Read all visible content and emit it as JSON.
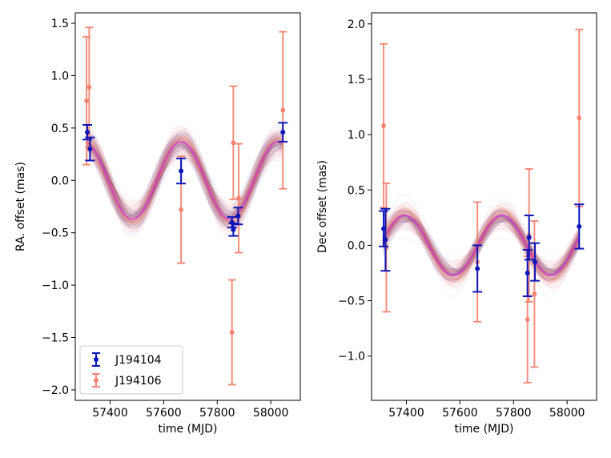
{
  "colors": {
    "series_a": "#0a16b8",
    "series_b": "#f47a66",
    "model_line": "#e233d6",
    "posterior_a": "#3f2aa8",
    "posterior_b": "#f47a66"
  },
  "legend": {
    "position": "lower-left"
  },
  "chart_data": [
    {
      "type": "scatter",
      "xlabel": "time (MJD)",
      "ylabel": "RA. offset (mas)",
      "xlim": [
        57270,
        58110
      ],
      "ylim": [
        -2.1,
        1.6
      ],
      "xticks": [
        57400,
        57600,
        57800,
        58000
      ],
      "xtick_labels": [
        "57400",
        "57600",
        "57800",
        "58000"
      ],
      "yticks": [
        1.5,
        1.0,
        0.5,
        0.0,
        -0.5,
        -1.0,
        -1.5,
        -2.0
      ],
      "ytick_labels": [
        "1.5",
        "1.0",
        "0.5",
        "0.0",
        "−0.5",
        "−1.0",
        "−1.5",
        "−2.0"
      ],
      "model": {
        "amplitude": 0.37,
        "period_days": 363,
        "peak_mjd": 57665
      },
      "series": [
        {
          "name": "J194104",
          "color": "#0a16b8",
          "points": [
            {
              "x": 57315,
              "y": 0.46,
              "err": 0.07
            },
            {
              "x": 57325,
              "y": 0.3,
              "err": 0.11
            },
            {
              "x": 57665,
              "y": 0.09,
              "err": 0.12
            },
            {
              "x": 57855,
              "y": -0.4,
              "err": 0.05
            },
            {
              "x": 57860,
              "y": -0.47,
              "err": 0.06
            },
            {
              "x": 57878,
              "y": -0.34,
              "err": 0.08
            },
            {
              "x": 58045,
              "y": 0.46,
              "err": 0.09
            }
          ]
        },
        {
          "name": "J194106",
          "color": "#f47a66",
          "points": [
            {
              "x": 57312,
              "y": 0.76,
              "err": 0.61
            },
            {
              "x": 57322,
              "y": 0.89,
              "err": 0.57
            },
            {
              "x": 57665,
              "y": -0.28,
              "err": 0.51
            },
            {
              "x": 57855,
              "y": -1.45,
              "err": 0.5
            },
            {
              "x": 57860,
              "y": 0.36,
              "err": 0.54
            },
            {
              "x": 57880,
              "y": -0.17,
              "err": 0.52
            },
            {
              "x": 58045,
              "y": 0.67,
              "err": 0.75
            }
          ]
        }
      ]
    },
    {
      "type": "scatter",
      "xlabel": "time (MJD)",
      "ylabel": "Dec offset (mas)",
      "xlim": [
        57270,
        58110
      ],
      "ylim": [
        -1.4,
        2.1
      ],
      "xticks": [
        57400,
        57600,
        57800,
        58000
      ],
      "xtick_labels": [
        "57400",
        "57600",
        "57800",
        "58000"
      ],
      "yticks": [
        2.0,
        1.5,
        1.0,
        0.5,
        0.0,
        -0.5,
        -1.0
      ],
      "ytick_labels": [
        "2.0",
        "1.5",
        "1.0",
        "0.5",
        "0.0",
        "−0.5",
        "−1.0"
      ],
      "model": {
        "amplitude": 0.27,
        "period_days": 363,
        "peak_mjd": 57757
      },
      "series": [
        {
          "name": "J194104",
          "color": "#0a16b8",
          "points": [
            {
              "x": 57315,
              "y": 0.15,
              "err": 0.16
            },
            {
              "x": 57322,
              "y": 0.05,
              "err": 0.28
            },
            {
              "x": 57665,
              "y": -0.21,
              "err": 0.21
            },
            {
              "x": 57852,
              "y": -0.25,
              "err": 0.21
            },
            {
              "x": 57858,
              "y": 0.07,
              "err": 0.2
            },
            {
              "x": 57880,
              "y": -0.15,
              "err": 0.17
            },
            {
              "x": 58045,
              "y": 0.17,
              "err": 0.2
            }
          ]
        },
        {
          "name": "J194106",
          "color": "#f47a66",
          "points": [
            {
              "x": 57315,
              "y": 1.08,
              "err": 0.74
            },
            {
              "x": 57325,
              "y": -0.02,
              "err": 0.58
            },
            {
              "x": 57665,
              "y": -0.15,
              "err": 0.54
            },
            {
              "x": 57852,
              "y": -0.67,
              "err": 0.57
            },
            {
              "x": 57858,
              "y": 0.09,
              "err": 0.6
            },
            {
              "x": 57878,
              "y": -0.44,
              "err": 0.66
            },
            {
              "x": 58045,
              "y": 1.15,
              "err": 0.8
            }
          ]
        }
      ]
    }
  ]
}
